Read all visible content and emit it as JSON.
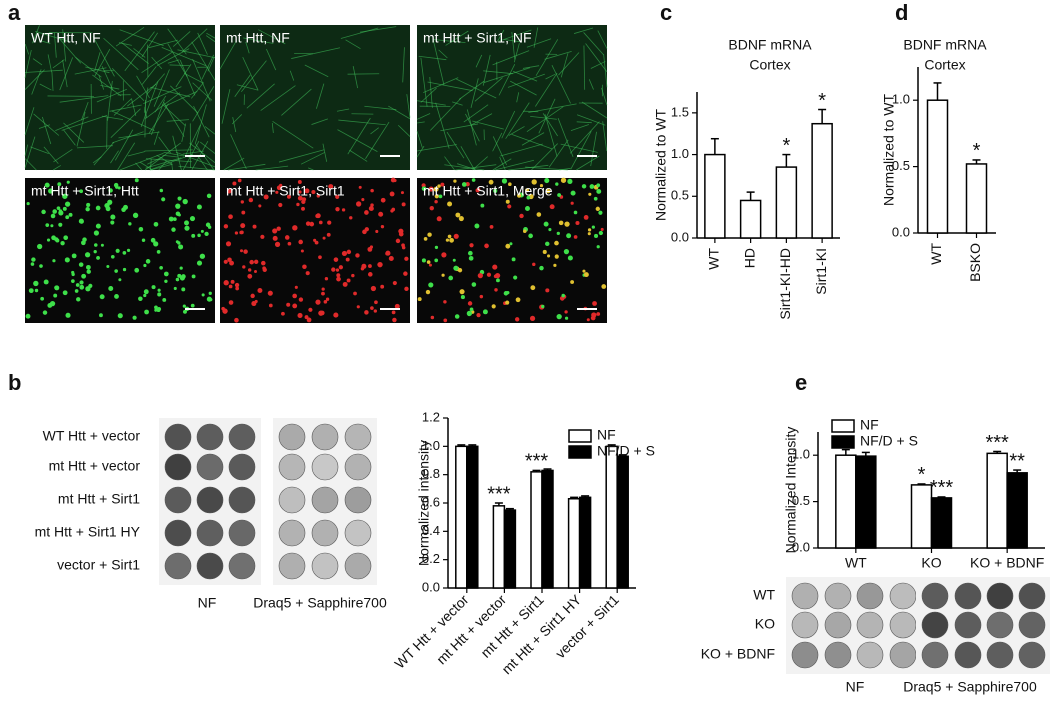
{
  "panel_labels": [
    "a",
    "b",
    "c",
    "d",
    "e"
  ],
  "images": [
    {
      "label": "WT Htt, NF"
    },
    {
      "label": "mt Htt, NF"
    },
    {
      "label": "mt Htt + Sirt1, NF"
    },
    {
      "label": "mt Htt + Sirt1, Htt"
    },
    {
      "label": "mt Htt + Sirt1, Sirt1"
    },
    {
      "label": "mt Htt + Sirt1, Merge"
    }
  ],
  "blots": [
    {
      "rows": [
        "WT Htt + vector",
        "mt Htt + vector",
        "mt Htt + Sirt1",
        "mt Htt + Sirt1 HY",
        "vector + Sirt1"
      ],
      "columns": [
        "NF",
        "Draq5 + Sapphire700"
      ]
    },
    {
      "rows": [
        "WT",
        "KO",
        "KO + BDNF"
      ],
      "columns": [
        "NF",
        "Draq5 + Sapphire700"
      ]
    }
  ],
  "chart_data": [
    {
      "type": "bar",
      "ylabel": "Normalized intensity",
      "categories": [
        "WT Htt + vector",
        "mt Htt + vector",
        "mt Htt + Sirt1",
        "mt Htt + Sirt1 HY",
        "vector + Sirt1"
      ],
      "series": [
        {
          "name": "NF",
          "color": "#ffffff",
          "values": [
            1.0,
            0.58,
            0.82,
            0.63,
            1.0
          ],
          "errors": [
            0.01,
            0.02,
            0.01,
            0.01,
            0.01
          ],
          "significance": [
            null,
            "***",
            "***",
            null,
            null
          ]
        },
        {
          "name": "NF/D + S",
          "color": "#000000",
          "values": [
            1.0,
            0.55,
            0.83,
            0.64,
            0.93
          ],
          "errors": [
            0.01,
            0.01,
            0.01,
            0.01,
            0.01
          ],
          "significance": [
            null,
            null,
            null,
            null,
            null
          ]
        }
      ],
      "ylim": [
        0,
        1.2
      ],
      "yticks": [
        {
          "value": 0,
          "label": "0.0"
        },
        0.2,
        0.4,
        0.6,
        0.8,
        {
          "value": 1,
          "label": "1.0"
        },
        1.2
      ],
      "legend": "upper right"
    },
    {
      "type": "bar",
      "title": "BDNF mRNA",
      "subtitle": "Cortex",
      "ylabel": "Normalized to WT",
      "categories": [
        "WT",
        "HD",
        "Sirt1-KI-HD",
        "Sirt1-KI"
      ],
      "values": [
        1.0,
        0.45,
        0.85,
        1.37
      ],
      "errors": [
        0.19,
        0.1,
        0.15,
        0.17
      ],
      "significance": [
        null,
        null,
        "*",
        "*"
      ],
      "color": "#ffffff",
      "ylim": [
        0,
        1.75
      ],
      "yticks": [
        {
          "value": 0,
          "label": "0.0"
        },
        0.5,
        {
          "value": 1,
          "label": "1.0"
        },
        1.5
      ]
    },
    {
      "type": "bar",
      "title": "BDNF mRNA",
      "subtitle": "Cortex",
      "ylabel": "Normalized to WT",
      "categories": [
        "WT",
        "BSKO"
      ],
      "values": [
        1.0,
        0.52
      ],
      "errors": [
        0.13,
        0.03
      ],
      "significance": [
        null,
        "*"
      ],
      "color": "#ffffff",
      "ylim": [
        0,
        1.25
      ],
      "yticks": [
        {
          "value": 0,
          "label": "0.0"
        },
        0.5,
        {
          "value": 1,
          "label": "1.0"
        }
      ]
    },
    {
      "type": "bar",
      "ylabel": "Normalized Intensity",
      "categories": [
        "WT",
        "KO",
        "KO + BDNF"
      ],
      "series": [
        {
          "name": "NF",
          "color": "#ffffff",
          "values": [
            1.0,
            0.68,
            1.02
          ],
          "errors": [
            0.06,
            0.01,
            0.02
          ],
          "significance": [
            null,
            "*",
            "***"
          ]
        },
        {
          "name": "NF/D + S",
          "color": "#000000",
          "values": [
            0.99,
            0.54,
            0.81
          ],
          "errors": [
            0.04,
            0.01,
            0.03
          ],
          "significance": [
            null,
            "***",
            "**"
          ]
        }
      ],
      "ylim": [
        0,
        1.25
      ],
      "yticks": [
        {
          "value": 0,
          "label": "0.0"
        },
        0.5,
        {
          "value": 1,
          "label": "1.0"
        }
      ],
      "legend": "upper left"
    }
  ]
}
